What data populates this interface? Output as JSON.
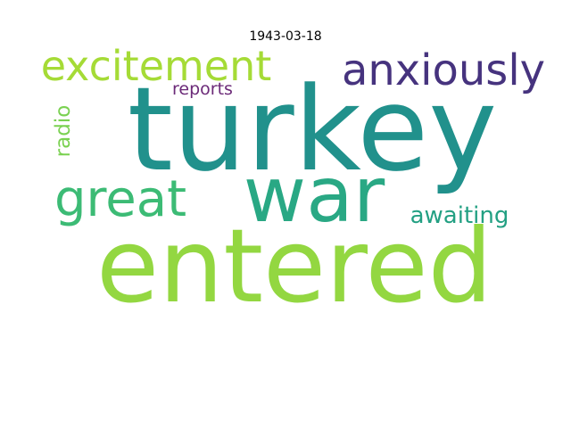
{
  "title": "1943-03-18",
  "words": [
    {
      "text": "turkey",
      "color": "#21918c"
    },
    {
      "text": "war",
      "color": "#29a884"
    },
    {
      "text": "entered",
      "color": "#93d741"
    },
    {
      "text": "great",
      "color": "#3cbb75"
    },
    {
      "text": "excitement",
      "color": "#a5db36"
    },
    {
      "text": "anxiously",
      "color": "#46337e"
    },
    {
      "text": "awaiting",
      "color": "#23a083"
    },
    {
      "text": "reports",
      "color": "#6b2a78"
    },
    {
      "text": "radio",
      "color": "#7ad151"
    }
  ]
}
